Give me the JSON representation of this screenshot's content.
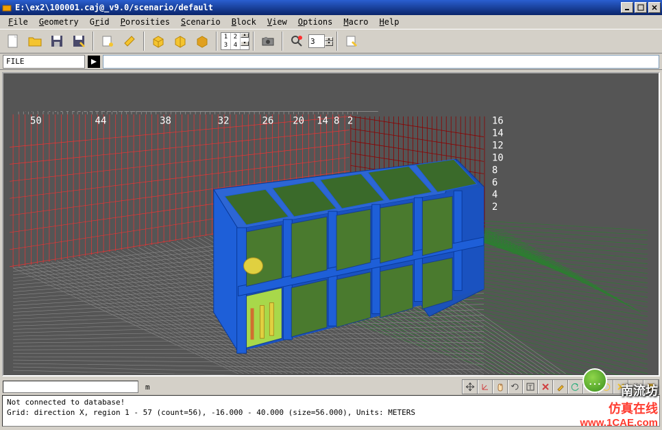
{
  "window": {
    "title": "E:\\ex2\\100001.caj@_v9.0/scenario/default",
    "icon_color": "#f0a000"
  },
  "titlebar_buttons": {
    "min": "_",
    "max": "□",
    "close": "×"
  },
  "menu": [
    {
      "label": "File",
      "u": "F"
    },
    {
      "label": "Geometry",
      "u": "G"
    },
    {
      "label": "Grid",
      "u": "G"
    },
    {
      "label": "Porosities",
      "u": "P"
    },
    {
      "label": "Scenario",
      "u": "S"
    },
    {
      "label": "Block",
      "u": "B"
    },
    {
      "label": "View",
      "u": "V"
    },
    {
      "label": "Options",
      "u": "O"
    },
    {
      "label": "Macro",
      "u": "M"
    },
    {
      "label": "Help",
      "u": "H"
    }
  ],
  "toolbar": {
    "groups": [
      [
        "new-file-icon",
        "open-folder-icon",
        "save-icon",
        "save-as-icon"
      ],
      [
        "wand-icon",
        "eraser-icon"
      ],
      [
        "box-1-icon",
        "box-2-icon",
        "box-3-icon"
      ],
      [
        "grid-12-icon"
      ],
      [
        "camera-icon"
      ],
      [
        "zoom-icon"
      ],
      [
        "clip-icon"
      ]
    ],
    "spin": {
      "r1c1": "1",
      "r1c2": "2",
      "r2c1": "3",
      "r2c2": "4"
    },
    "num_value": "3"
  },
  "command": {
    "label": "FILE",
    "value": ""
  },
  "viewport": {
    "bg": "#555555",
    "x_labels": [
      "50",
      "44",
      "38",
      "32",
      "26",
      "20",
      "14",
      "8",
      "2"
    ],
    "z_labels": [
      "16",
      "14",
      "12",
      "10",
      "8",
      "6",
      "4",
      "2"
    ],
    "grid_colors": {
      "back_left": "#ff3030",
      "back_right": "#8b0000",
      "floor_near": "#888888",
      "floor_far": "#2e7d32"
    },
    "building": {
      "frame": "#1e5fd8",
      "panel1": "#4a7a2e",
      "panel2": "#a8d84a",
      "cyl": "#e0d040"
    }
  },
  "scalebar": {
    "unit": "m"
  },
  "bottom_tools": [
    "arrows-icon",
    "axes-icon",
    "hand-icon",
    "rotate-icon",
    "text-icon",
    "x-icon",
    "pencil-icon",
    "undo-icon",
    "target-icon",
    "redo-icon",
    "cut-x-icon",
    "gear-icon",
    "clip2-icon"
  ],
  "status": {
    "line1": "Not connected to database!",
    "line2": "",
    "line3": "Grid: direction X, region 1 - 57 (count=56), -16.000 - 40.000 (size=56.000), Units: METERS"
  },
  "watermark": {
    "l1": "南流坊",
    "l2": "仿真在线",
    "l3": "www.1CAE.com"
  }
}
